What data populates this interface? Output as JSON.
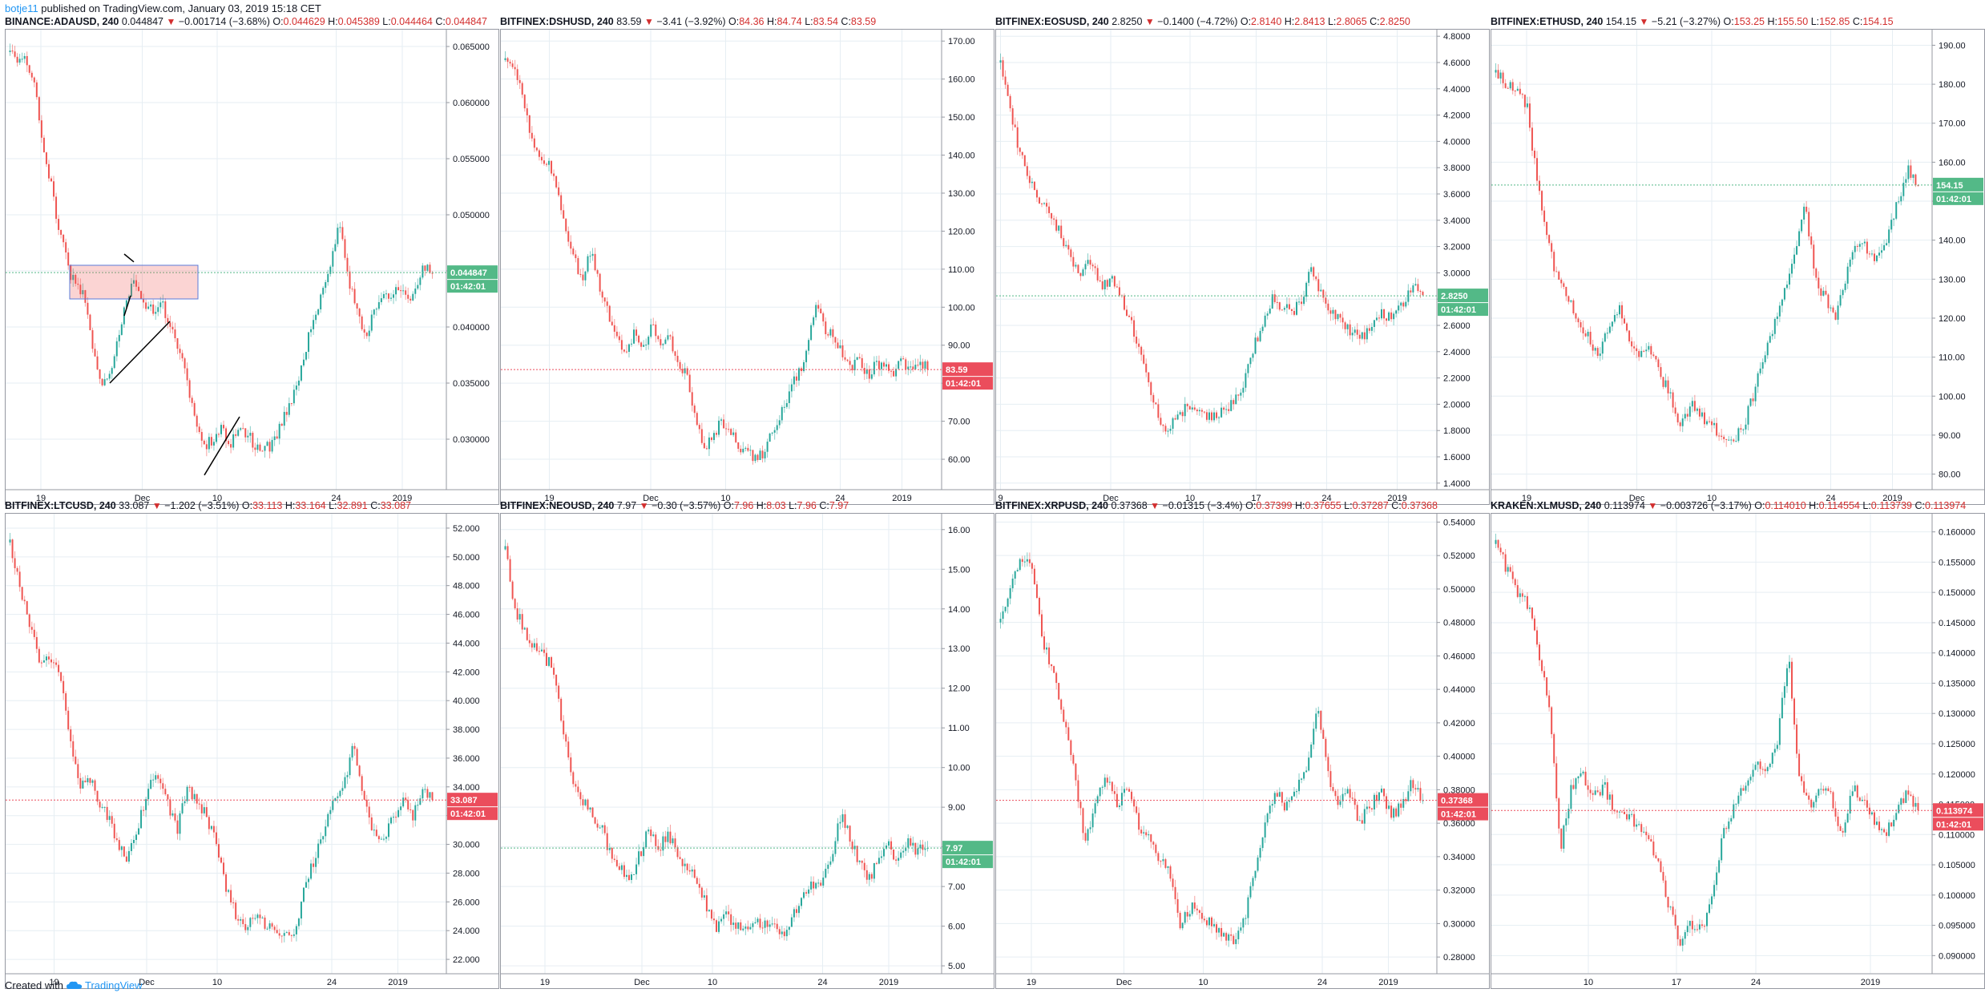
{
  "header": {
    "author": "botje11",
    "published_text": " published on TradingView.com, January 03, 2019 15:18 CET"
  },
  "footer": {
    "created_with": "Created with",
    "brand": "TradingView"
  },
  "colors": {
    "up": "#26a69a",
    "down": "#ef5350",
    "grid": "#e6eef3",
    "up_tag": "#53b987",
    "down_tag": "#eb4d5c"
  },
  "chart_data": [
    {
      "type": "candlestick",
      "symbol": "BINANCE:ADAUSD, 240",
      "last": "0.044847",
      "change": "−0.001714 (−3.68%)",
      "ohlc": {
        "O": "0.044629",
        "H": "0.045389",
        "L": "0.044464",
        "C": "0.044847"
      },
      "direction": "up",
      "price_tag": "0.044847",
      "countdown": "01:42:01",
      "yticks": [
        "0.065000",
        "0.060000",
        "0.055000",
        "0.050000",
        "0.045000",
        "0.040000",
        "0.035000",
        "0.030000"
      ],
      "ylim": [
        0.0255,
        0.0665
      ],
      "xticks": [
        "19",
        "Dec",
        "10",
        "24",
        "2019"
      ],
      "xtick_pos": [
        0.08,
        0.31,
        0.48,
        0.75,
        0.9
      ],
      "path": [
        0.0645,
        0.064,
        0.0635,
        0.061,
        0.056,
        0.052,
        0.048,
        0.045,
        0.0435,
        0.0425,
        0.037,
        0.035,
        0.036,
        0.04,
        0.043,
        0.044,
        0.042,
        0.0415,
        0.042,
        0.04,
        0.038,
        0.035,
        0.031,
        0.0295,
        0.03,
        0.031,
        0.0295,
        0.0305,
        0.0305,
        0.0295,
        0.029,
        0.0295,
        0.031,
        0.033,
        0.035,
        0.038,
        0.041,
        0.043,
        0.046,
        0.049,
        0.0445,
        0.042,
        0.039,
        0.041,
        0.043,
        0.042,
        0.0435,
        0.0425,
        0.043,
        0.0455,
        0.0448
      ]
    },
    {
      "type": "candlestick",
      "symbol": "BITFINEX:DSHUSD, 240",
      "last": "83.59",
      "change": "−3.41 (−3.92%)",
      "ohlc": {
        "O": "84.36",
        "H": "84.74",
        "L": "83.54",
        "C": "83.59"
      },
      "direction": "down",
      "price_tag": "83.59",
      "countdown": "01:42:01",
      "yticks": [
        "170.00",
        "160.00",
        "150.00",
        "140.00",
        "130.00",
        "120.00",
        "110.00",
        "100.00",
        "90.00",
        "80.00",
        "70.00",
        "60.00"
      ],
      "ylim": [
        52,
        173
      ],
      "xticks": [
        "19",
        "Dec",
        "10",
        "24",
        "2019"
      ],
      "xtick_pos": [
        0.11,
        0.34,
        0.51,
        0.77,
        0.91
      ],
      "path": [
        165,
        163,
        155,
        145,
        140,
        138,
        130,
        120,
        112,
        108,
        115,
        105,
        98,
        92,
        88,
        93,
        90,
        95,
        90,
        92,
        86,
        82,
        72,
        62,
        66,
        70,
        67,
        64,
        62,
        60,
        62,
        68,
        72,
        78,
        83,
        88,
        100,
        95,
        92,
        88,
        84,
        86,
        82,
        85,
        84,
        83,
        86,
        84,
        86,
        83.6
      ]
    },
    {
      "type": "candlestick",
      "symbol": "BITFINEX:EOSUSD, 240",
      "last": "2.8250",
      "change": "−0.1400 (−4.72%)",
      "ohlc": {
        "O": "2.8140",
        "H": "2.8413",
        "L": "2.8065",
        "C": "2.8250"
      },
      "direction": "up",
      "price_tag": "2.8250",
      "countdown": "01:42:01",
      "yticks": [
        "4.8000",
        "4.6000",
        "4.4000",
        "4.2000",
        "4.0000",
        "3.8000",
        "3.6000",
        "3.4000",
        "3.2000",
        "3.0000",
        "2.8000",
        "2.6000",
        "2.4000",
        "2.2000",
        "2.0000",
        "1.8000",
        "1.6000",
        "1.4000"
      ],
      "ylim": [
        1.35,
        4.85
      ],
      "xticks": [
        "9",
        "Dec",
        "10",
        "17",
        "24",
        "2019"
      ],
      "xtick_pos": [
        0.01,
        0.26,
        0.44,
        0.59,
        0.75,
        0.91
      ],
      "path": [
        4.6,
        4.2,
        3.9,
        3.7,
        3.55,
        3.4,
        3.3,
        3.1,
        3.0,
        3.1,
        2.9,
        2.95,
        2.8,
        2.6,
        2.4,
        2.1,
        1.8,
        1.85,
        1.95,
        2.0,
        1.95,
        1.9,
        1.95,
        2.0,
        2.1,
        2.4,
        2.6,
        2.8,
        2.75,
        2.7,
        2.8,
        3.05,
        2.8,
        2.7,
        2.6,
        2.55,
        2.5,
        2.6,
        2.7,
        2.65,
        2.75,
        2.9,
        2.83
      ]
    },
    {
      "type": "candlestick",
      "symbol": "BITFINEX:ETHUSD, 240",
      "last": "154.15",
      "change": "−5.21 (−3.27%)",
      "ohlc": {
        "O": "153.25",
        "H": "155.50",
        "L": "152.85",
        "C": "154.15"
      },
      "direction": "up",
      "price_tag": "154.15",
      "countdown": "01:42:01",
      "yticks": [
        "190.00",
        "180.00",
        "170.00",
        "160.00",
        "150.00",
        "140.00",
        "130.00",
        "120.00",
        "110.00",
        "100.00",
        "90.00",
        "80.00"
      ],
      "ylim": [
        76,
        194
      ],
      "xticks": [
        "19",
        "Dec",
        "10",
        "24",
        "2019"
      ],
      "xtick_pos": [
        0.08,
        0.33,
        0.5,
        0.77,
        0.91
      ],
      "path": [
        183,
        180,
        178,
        175,
        155,
        140,
        130,
        125,
        120,
        115,
        110,
        118,
        122,
        115,
        110,
        112,
        105,
        100,
        92,
        98,
        95,
        92,
        90,
        88,
        92,
        100,
        110,
        118,
        128,
        135,
        150,
        130,
        125,
        120,
        130,
        140,
        138,
        135,
        140,
        150,
        158,
        154
      ]
    },
    {
      "type": "candlestick",
      "symbol": "BITFINEX:LTCUSD, 240",
      "last": "33.087",
      "change": "−1.202 (−3.51%)",
      "ohlc": {
        "O": "33.113",
        "H": "33.164",
        "L": "32.891",
        "C": "33.087"
      },
      "direction": "down",
      "price_tag": "33.087",
      "countdown": "01:42:01",
      "yticks": [
        "52.000",
        "50.000",
        "48.000",
        "46.000",
        "44.000",
        "42.000",
        "40.000",
        "38.000",
        "36.000",
        "34.000",
        "32.000",
        "30.000",
        "28.000",
        "26.000",
        "24.000",
        "22.000"
      ],
      "ylim": [
        21,
        53
      ],
      "xticks": [
        "19",
        "Dec",
        "10",
        "24",
        "2019"
      ],
      "xtick_pos": [
        0.11,
        0.32,
        0.48,
        0.74,
        0.89
      ],
      "path": [
        51,
        48,
        45,
        43,
        42.5,
        42,
        38,
        34,
        35,
        33,
        32,
        30,
        29,
        31,
        34,
        35,
        33,
        31,
        34,
        33,
        32,
        30,
        27,
        25,
        24,
        25,
        24.5,
        24,
        23.5,
        24,
        27,
        29,
        31,
        33,
        34,
        37,
        33,
        31,
        30,
        32,
        33,
        32,
        34,
        33.1
      ]
    },
    {
      "type": "candlestick",
      "symbol": "BITFINEX:NEOUSD, 240",
      "last": "7.97",
      "change": "−0.30 (−3.57%)",
      "ohlc": {
        "O": "7.96",
        "H": "8.03",
        "L": "7.96",
        "C": "7.97"
      },
      "direction": "up",
      "price_tag": "7.97",
      "countdown": "01:42:01",
      "yticks": [
        "16.00",
        "15.00",
        "14.00",
        "13.00",
        "12.00",
        "11.00",
        "10.00",
        "9.00",
        "8.00",
        "7.00",
        "6.00",
        "5.00"
      ],
      "ylim": [
        4.8,
        16.4
      ],
      "xticks": [
        "19",
        "Dec",
        "10",
        "24",
        "2019"
      ],
      "xtick_pos": [
        0.1,
        0.32,
        0.48,
        0.73,
        0.88
      ],
      "path": [
        15.5,
        14,
        13.5,
        13,
        12.8,
        12.5,
        11,
        9.5,
        9.2,
        8.8,
        8.5,
        7.8,
        7.5,
        7.2,
        7.8,
        8.5,
        8.0,
        8.3,
        7.8,
        7.5,
        7.2,
        6.5,
        6.0,
        6.3,
        6.0,
        5.9,
        6.2,
        6.0,
        6.1,
        5.8,
        6.3,
        6.8,
        7.0,
        7.2,
        7.8,
        8.8,
        8.2,
        7.5,
        7.2,
        7.8,
        8.0,
        7.6,
        8.1,
        7.9,
        7.97
      ]
    },
    {
      "type": "candlestick",
      "symbol": "BITFINEX:XRPUSD, 240",
      "last": "0.37368",
      "change": "−0.01315 (−3.4%)",
      "ohlc": {
        "O": "0.37399",
        "H": "0.37655",
        "L": "0.37287",
        "C": "0.37368"
      },
      "direction": "down",
      "price_tag": "0.37368",
      "countdown": "01:42:01",
      "yticks": [
        "0.54000",
        "0.52000",
        "0.50000",
        "0.48000",
        "0.46000",
        "0.44000",
        "0.42000",
        "0.40000",
        "0.38000",
        "0.36000",
        "0.34000",
        "0.32000",
        "0.30000",
        "0.28000"
      ],
      "ylim": [
        0.27,
        0.545
      ],
      "xticks": [
        "19",
        "Dec",
        "10",
        "24",
        "2019"
      ],
      "xtick_pos": [
        0.08,
        0.29,
        0.47,
        0.74,
        0.89
      ],
      "path": [
        0.48,
        0.5,
        0.52,
        0.51,
        0.47,
        0.45,
        0.42,
        0.39,
        0.35,
        0.37,
        0.39,
        0.37,
        0.38,
        0.36,
        0.35,
        0.34,
        0.33,
        0.3,
        0.31,
        0.305,
        0.3,
        0.295,
        0.29,
        0.3,
        0.33,
        0.36,
        0.38,
        0.37,
        0.38,
        0.39,
        0.43,
        0.39,
        0.37,
        0.38,
        0.36,
        0.37,
        0.38,
        0.365,
        0.37,
        0.385,
        0.3737
      ]
    },
    {
      "type": "candlestick",
      "symbol": "KRAKEN:XLMUSD, 240",
      "last": "0.113974",
      "change": "−0.003726 (−3.17%)",
      "ohlc": {
        "O": "0.114010",
        "H": "0.114554",
        "L": "0.113739",
        "C": "0.113974"
      },
      "direction": "down",
      "price_tag": "0.113974",
      "countdown": "01:42:01",
      "yticks": [
        "0.160000",
        "0.155000",
        "0.150000",
        "0.145000",
        "0.140000",
        "0.135000",
        "0.130000",
        "0.125000",
        "0.120000",
        "0.115000",
        "0.110000",
        "0.105000",
        "0.100000",
        "0.095000",
        "0.090000"
      ],
      "ylim": [
        0.087,
        0.163
      ],
      "xticks": [
        "10",
        "17",
        "24",
        "2019"
      ],
      "xtick_pos": [
        0.22,
        0.42,
        0.6,
        0.86
      ],
      "path": [
        0.158,
        0.154,
        0.15,
        0.148,
        0.14,
        0.13,
        0.108,
        0.118,
        0.12,
        0.116,
        0.118,
        0.114,
        0.113,
        0.112,
        0.11,
        0.105,
        0.098,
        0.092,
        0.095,
        0.094,
        0.1,
        0.11,
        0.115,
        0.118,
        0.122,
        0.12,
        0.125,
        0.14,
        0.12,
        0.115,
        0.118,
        0.116,
        0.11,
        0.118,
        0.115,
        0.112,
        0.11,
        0.114,
        0.117,
        0.114
      ]
    }
  ]
}
